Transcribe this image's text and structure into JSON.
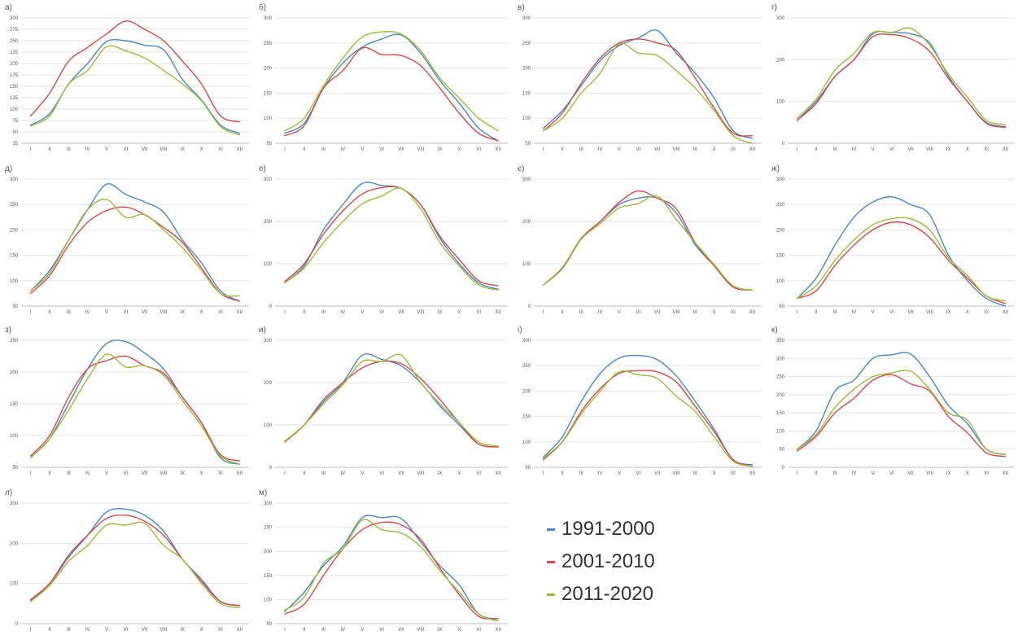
{
  "months": [
    "I",
    "II",
    "III",
    "IV",
    "V",
    "VI",
    "VII",
    "VIII",
    "IX",
    "X",
    "XI",
    "XII"
  ],
  "colors": {
    "s1": "#4a86c8",
    "s2": "#d94848",
    "s3": "#9bbb3c"
  },
  "legend": [
    "1991-2000",
    "2001-2010",
    "2011-2020"
  ],
  "chart_data": [
    {
      "type": "line",
      "label": "а)",
      "ylim": [
        25,
        300
      ],
      "yticks": [
        25,
        50,
        75,
        100,
        125,
        150,
        175,
        200,
        225,
        250,
        275,
        300
      ],
      "series": [
        {
          "name": "1991-2000",
          "values": [
            65,
            90,
            155,
            200,
            248,
            250,
            240,
            230,
            165,
            120,
            65,
            47
          ]
        },
        {
          "name": "2001-2010",
          "values": [
            85,
            135,
            205,
            235,
            265,
            293,
            275,
            250,
            205,
            155,
            85,
            72
          ]
        },
        {
          "name": "2011-2020",
          "values": [
            63,
            85,
            155,
            185,
            237,
            228,
            212,
            185,
            155,
            118,
            62,
            43
          ]
        }
      ]
    },
    {
      "type": "line",
      "label": "б)",
      "ylim": [
        50,
        300
      ],
      "yticks": [
        50,
        100,
        150,
        200,
        250,
        300
      ],
      "series": [
        {
          "name": "1991-2000",
          "values": [
            70,
            90,
            160,
            210,
            242,
            258,
            266,
            230,
            175,
            130,
            80,
            55
          ]
        },
        {
          "name": "2001-2010",
          "values": [
            65,
            85,
            160,
            195,
            240,
            227,
            225,
            205,
            160,
            110,
            70,
            55
          ]
        },
        {
          "name": "2011-2020",
          "values": [
            75,
            100,
            165,
            220,
            262,
            272,
            268,
            235,
            180,
            140,
            100,
            75
          ]
        }
      ]
    },
    {
      "type": "line",
      "label": "в)",
      "ylim": [
        50,
        300
      ],
      "yticks": [
        50,
        100,
        150,
        200,
        250,
        300
      ],
      "series": [
        {
          "name": "1991-2000",
          "values": [
            80,
            115,
            165,
            215,
            245,
            260,
            275,
            230,
            190,
            140,
            75,
            60
          ]
        },
        {
          "name": "2001-2010",
          "values": [
            75,
            110,
            170,
            220,
            250,
            258,
            250,
            235,
            180,
            120,
            70,
            65
          ]
        },
        {
          "name": "2011-2020",
          "values": [
            75,
            100,
            150,
            190,
            248,
            230,
            225,
            195,
            160,
            115,
            65,
            50
          ]
        }
      ]
    },
    {
      "type": "line",
      "label": "г)",
      "ylim": [
        0,
        300
      ],
      "yticks": [
        0,
        100,
        200,
        300
      ],
      "series": [
        {
          "name": "1991-2000",
          "values": [
            55,
            100,
            160,
            200,
            262,
            265,
            262,
            240,
            160,
            100,
            50,
            40
          ]
        },
        {
          "name": "2001-2010",
          "values": [
            55,
            95,
            160,
            200,
            255,
            260,
            250,
            220,
            155,
            100,
            48,
            38
          ]
        },
        {
          "name": "2011-2020",
          "values": [
            60,
            105,
            175,
            215,
            265,
            265,
            275,
            235,
            165,
            110,
            55,
            45
          ]
        }
      ]
    },
    {
      "type": "line",
      "label": "д)",
      "ylim": [
        50,
        300
      ],
      "yticks": [
        50,
        100,
        150,
        200,
        250,
        300
      ],
      "series": [
        {
          "name": "1991-2000",
          "values": [
            80,
            120,
            180,
            240,
            290,
            270,
            255,
            235,
            180,
            135,
            80,
            60
          ]
        },
        {
          "name": "2001-2010",
          "values": [
            75,
            110,
            170,
            215,
            238,
            245,
            230,
            205,
            175,
            125,
            75,
            60
          ]
        },
        {
          "name": "2011-2020",
          "values": [
            80,
            115,
            180,
            240,
            260,
            225,
            230,
            200,
            165,
            120,
            75,
            70
          ]
        }
      ]
    },
    {
      "type": "line",
      "label": "е)",
      "ylim": [
        0,
        300
      ],
      "yticks": [
        0,
        100,
        200,
        300
      ],
      "series": [
        {
          "name": "1991-2000",
          "values": [
            55,
            95,
            180,
            240,
            290,
            285,
            278,
            240,
            160,
            100,
            55,
            40
          ]
        },
        {
          "name": "2001-2010",
          "values": [
            58,
            100,
            170,
            225,
            265,
            280,
            278,
            240,
            165,
            110,
            60,
            48
          ]
        },
        {
          "name": "2011-2020",
          "values": [
            55,
            90,
            150,
            200,
            242,
            260,
            278,
            230,
            150,
            95,
            50,
            38
          ]
        }
      ]
    },
    {
      "type": "line",
      "label": "є)",
      "ylim": [
        0,
        300
      ],
      "yticks": [
        0,
        100,
        200,
        300
      ],
      "series": [
        {
          "name": "1991-2000",
          "values": [
            50,
            90,
            160,
            200,
            240,
            255,
            255,
            220,
            145,
            95,
            45,
            38
          ]
        },
        {
          "name": "2001-2010",
          "values": [
            50,
            90,
            160,
            200,
            245,
            272,
            255,
            230,
            150,
            95,
            45,
            38
          ]
        },
        {
          "name": "2011-2020",
          "values": [
            50,
            88,
            158,
            195,
            232,
            242,
            260,
            205,
            150,
            98,
            48,
            38
          ]
        }
      ]
    },
    {
      "type": "line",
      "label": "ж)",
      "ylim": [
        50,
        300
      ],
      "yticks": [
        50,
        100,
        150,
        200,
        250,
        300
      ],
      "series": [
        {
          "name": "1991-2000",
          "values": [
            65,
            105,
            170,
            225,
            255,
            265,
            250,
            230,
            150,
            100,
            65,
            50
          ]
        },
        {
          "name": "2001-2010",
          "values": [
            65,
            80,
            130,
            170,
            200,
            215,
            210,
            185,
            140,
            105,
            70,
            55
          ]
        },
        {
          "name": "2011-2020",
          "values": [
            65,
            90,
            140,
            180,
            210,
            222,
            222,
            200,
            145,
            110,
            70,
            60
          ]
        }
      ]
    },
    {
      "type": "line",
      "label": "з)",
      "ylim": [
        50,
        250
      ],
      "yticks": [
        50,
        100,
        150,
        200,
        250
      ],
      "series": [
        {
          "name": "1991-2000",
          "values": [
            65,
            95,
            150,
            205,
            245,
            248,
            230,
            205,
            160,
            120,
            65,
            55
          ]
        },
        {
          "name": "2001-2010",
          "values": [
            68,
            100,
            160,
            205,
            218,
            225,
            210,
            198,
            160,
            120,
            70,
            60
          ]
        },
        {
          "name": "2011-2020",
          "values": [
            65,
            95,
            140,
            190,
            228,
            208,
            210,
            195,
            155,
            115,
            68,
            55
          ]
        }
      ]
    },
    {
      "type": "line",
      "label": "и)",
      "ylim": [
        0,
        300
      ],
      "yticks": [
        0,
        100,
        200,
        300
      ],
      "series": [
        {
          "name": "1991-2000",
          "values": [
            60,
            100,
            155,
            200,
            265,
            255,
            240,
            200,
            145,
            100,
            55,
            48
          ]
        },
        {
          "name": "2001-2010",
          "values": [
            60,
            100,
            160,
            200,
            235,
            250,
            245,
            210,
            160,
            105,
            55,
            48
          ]
        },
        {
          "name": "2011-2020",
          "values": [
            62,
            100,
            150,
            195,
            250,
            250,
            265,
            200,
            150,
            105,
            60,
            50
          ]
        }
      ]
    },
    {
      "type": "line",
      "label": "і)",
      "ylim": [
        50,
        300
      ],
      "yticks": [
        50,
        100,
        150,
        200,
        250,
        300
      ],
      "series": [
        {
          "name": "1991-2000",
          "values": [
            70,
            110,
            180,
            235,
            265,
            270,
            262,
            230,
            180,
            125,
            65,
            55
          ]
        },
        {
          "name": "2001-2010",
          "values": [
            65,
            100,
            160,
            205,
            235,
            240,
            238,
            218,
            170,
            120,
            65,
            52
          ]
        },
        {
          "name": "2011-2020",
          "values": [
            68,
            100,
            155,
            200,
            238,
            232,
            225,
            190,
            160,
            110,
            62,
            52
          ]
        }
      ]
    },
    {
      "type": "line",
      "label": "к)",
      "ylim": [
        0,
        350
      ],
      "yticks": [
        0,
        50,
        100,
        150,
        200,
        250,
        300,
        350
      ],
      "series": [
        {
          "name": "1991-2000",
          "values": [
            50,
            100,
            210,
            240,
            300,
            310,
            312,
            250,
            170,
            120,
            50,
            35
          ]
        },
        {
          "name": "2001-2010",
          "values": [
            45,
            85,
            150,
            190,
            240,
            255,
            230,
            210,
            140,
            95,
            40,
            30
          ]
        },
        {
          "name": "2011-2020",
          "values": [
            50,
            90,
            165,
            215,
            250,
            260,
            265,
            215,
            150,
            130,
            50,
            35
          ]
        }
      ]
    },
    {
      "type": "line",
      "label": "л)",
      "ylim": [
        0,
        300
      ],
      "yticks": [
        0,
        100,
        200,
        300
      ],
      "series": [
        {
          "name": "1991-2000",
          "values": [
            60,
            100,
            165,
            220,
            278,
            285,
            270,
            230,
            160,
            110,
            55,
            45
          ]
        },
        {
          "name": "2001-2010",
          "values": [
            58,
            100,
            170,
            220,
            262,
            270,
            255,
            220,
            160,
            105,
            55,
            45
          ]
        },
        {
          "name": "2011-2020",
          "values": [
            55,
            95,
            155,
            195,
            245,
            245,
            250,
            195,
            160,
            100,
            50,
            40
          ]
        }
      ]
    },
    {
      "type": "line",
      "label": "м)",
      "ylim": [
        50,
        300
      ],
      "yticks": [
        50,
        100,
        150,
        200,
        250,
        300
      ],
      "series": [
        {
          "name": "1991-2000",
          "values": [
            75,
            115,
            170,
            210,
            270,
            270,
            268,
            220,
            170,
            130,
            70,
            60
          ]
        },
        {
          "name": "2001-2010",
          "values": [
            70,
            90,
            150,
            205,
            245,
            260,
            255,
            225,
            165,
            110,
            65,
            60
          ]
        },
        {
          "name": "2011-2020",
          "values": [
            78,
            105,
            175,
            205,
            265,
            245,
            238,
            210,
            160,
            115,
            70,
            55
          ]
        }
      ]
    }
  ]
}
